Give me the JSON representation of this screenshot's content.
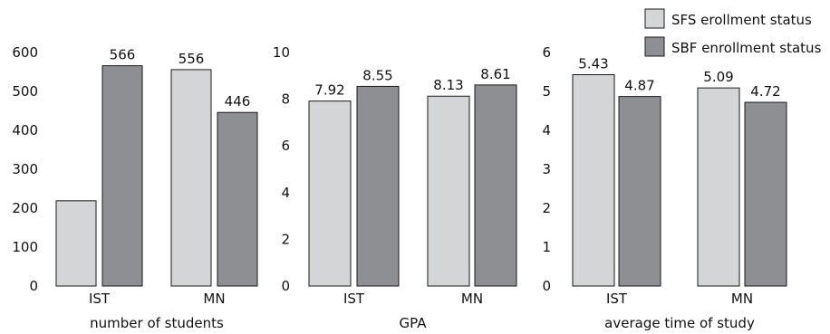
{
  "chart_data": [
    {
      "type": "bar",
      "categories": [
        "IST",
        "MN"
      ],
      "series": [
        {
          "name": "SFS enrollment status",
          "values": [
            219,
            556
          ]
        },
        {
          "name": "SBF enrollment status",
          "values": [
            566,
            446
          ]
        }
      ],
      "data_labels": [
        [
          "",
          "556"
        ],
        [
          "566",
          "446"
        ]
      ],
      "xlabel": "number of students",
      "ylim": [
        0,
        600
      ],
      "yticks": [
        "0",
        "100",
        "200",
        "300",
        "400",
        "500",
        "600"
      ]
    },
    {
      "type": "bar",
      "categories": [
        "IST",
        "MN"
      ],
      "series": [
        {
          "name": "SFS enrollment status",
          "values": [
            7.92,
            8.13
          ]
        },
        {
          "name": "SBF enrollment status",
          "values": [
            8.55,
            8.61
          ]
        }
      ],
      "data_labels": [
        [
          "7.92",
          "8.13"
        ],
        [
          "8.55",
          "8.61"
        ]
      ],
      "xlabel": "GPA",
      "ylim": [
        0,
        10
      ],
      "yticks": [
        "0",
        "2",
        "4",
        "6",
        "8",
        "10"
      ]
    },
    {
      "type": "bar",
      "categories": [
        "IST",
        "MN"
      ],
      "series": [
        {
          "name": "SFS enrollment status",
          "values": [
            5.43,
            5.09
          ]
        },
        {
          "name": "SBF enrollment status",
          "values": [
            4.87,
            4.72
          ]
        }
      ],
      "data_labels": [
        [
          "5.43",
          "5.09"
        ],
        [
          "4.87",
          "4.72"
        ]
      ],
      "xlabel": "average time of study",
      "ylim": [
        0,
        6
      ],
      "yticks": [
        "0",
        "1",
        "2",
        "3",
        "4",
        "5",
        "6"
      ]
    }
  ],
  "legend": {
    "placement": "top-right",
    "items": [
      {
        "label": "SFS erollment status",
        "color": "#d4d5d7"
      },
      {
        "label": "SBF enrollment status",
        "color": "#8e8f93"
      }
    ]
  },
  "colors": {
    "series_1": "#d4d5d7",
    "series_2": "#8e8f93",
    "outline": "#1a1a1a"
  }
}
